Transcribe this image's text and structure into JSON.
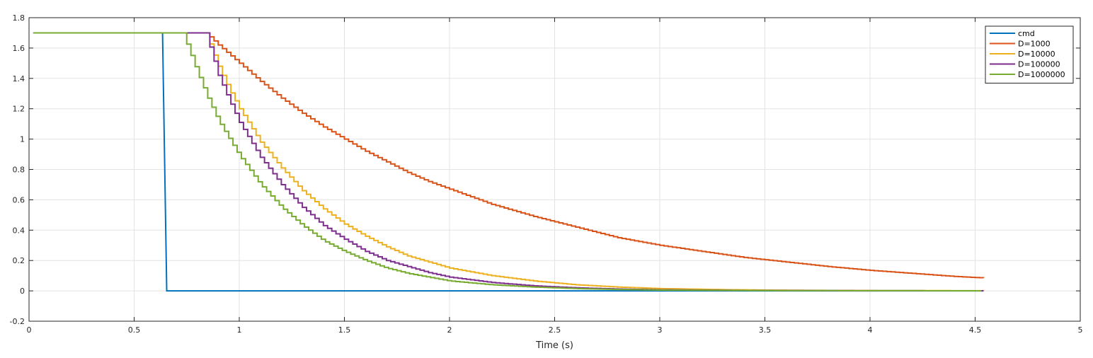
{
  "chart_data": {
    "type": "line",
    "title": "",
    "xlabel": "Time (s)",
    "ylabel": "",
    "xlim": [
      0,
      5
    ],
    "ylim": [
      -0.2,
      1.8
    ],
    "xticks": [
      0,
      0.5,
      1,
      1.5,
      2,
      2.5,
      3,
      3.5,
      4,
      4.5,
      5
    ],
    "xtick_labels": [
      "0",
      "0.5",
      "1",
      "1.5",
      "2",
      "2.5",
      "3",
      "3.5",
      "4",
      "4.5",
      "5"
    ],
    "yticks": [
      -0.2,
      0,
      0.2,
      0.4,
      0.6,
      0.8,
      1,
      1.2,
      1.4,
      1.6,
      1.8
    ],
    "ytick_labels": [
      "-0.2",
      "0",
      "0.2",
      "0.4",
      "0.6",
      "0.8",
      "1",
      "1.2",
      "1.4",
      "1.6",
      "1.8"
    ],
    "grid": true,
    "legend_position": "top-right",
    "series": [
      {
        "name": "cmd",
        "color": "#0072BD",
        "step": false,
        "x": [
          0.02,
          0.635,
          0.655,
          4.54
        ],
        "y": [
          1.7,
          1.7,
          0.0,
          0.0
        ]
      },
      {
        "name": "D=1000",
        "color": "#D95319",
        "step": true,
        "x": [
          0.02,
          0.84,
          0.9,
          1.0,
          1.1,
          1.2,
          1.3,
          1.4,
          1.5,
          1.6,
          1.7,
          1.8,
          1.9,
          2.0,
          2.2,
          2.4,
          2.6,
          2.8,
          3.0,
          3.2,
          3.4,
          3.6,
          3.8,
          4.0,
          4.2,
          4.4,
          4.54
        ],
        "y": [
          1.7,
          1.7,
          1.62,
          1.5,
          1.38,
          1.27,
          1.17,
          1.08,
          1.0,
          0.92,
          0.85,
          0.78,
          0.72,
          0.67,
          0.57,
          0.49,
          0.42,
          0.35,
          0.3,
          0.26,
          0.22,
          0.19,
          0.16,
          0.135,
          0.115,
          0.095,
          0.085
        ]
      },
      {
        "name": "D=10000",
        "color": "#EDB120",
        "step": true,
        "x": [
          0.02,
          0.84,
          0.9,
          0.95,
          1.0,
          1.1,
          1.2,
          1.3,
          1.4,
          1.5,
          1.6,
          1.7,
          1.8,
          1.9,
          2.0,
          2.2,
          2.4,
          2.6,
          2.8,
          3.0,
          3.3,
          3.6,
          4.0,
          4.54
        ],
        "y": [
          1.7,
          1.7,
          1.48,
          1.33,
          1.2,
          0.98,
          0.81,
          0.66,
          0.54,
          0.44,
          0.36,
          0.29,
          0.23,
          0.19,
          0.15,
          0.1,
          0.065,
          0.04,
          0.025,
          0.015,
          0.008,
          0.004,
          0.002,
          0.001
        ]
      },
      {
        "name": "D=100000",
        "color": "#7E2F8E",
        "step": true,
        "x": [
          0.02,
          0.84,
          0.9,
          0.95,
          1.0,
          1.1,
          1.2,
          1.3,
          1.4,
          1.5,
          1.6,
          1.7,
          1.8,
          1.9,
          2.0,
          2.2,
          2.4,
          2.6,
          2.8,
          3.0,
          3.4,
          4.0,
          4.54
        ],
        "y": [
          1.7,
          1.7,
          1.42,
          1.26,
          1.11,
          0.88,
          0.7,
          0.55,
          0.43,
          0.34,
          0.26,
          0.2,
          0.16,
          0.12,
          0.09,
          0.055,
          0.033,
          0.02,
          0.012,
          0.007,
          0.003,
          0.001,
          0.0005
        ]
      },
      {
        "name": "D=1000000",
        "color": "#77AC30",
        "step": true,
        "x": [
          0.02,
          0.73,
          0.8,
          0.85,
          0.9,
          1.0,
          1.1,
          1.2,
          1.3,
          1.4,
          1.5,
          1.6,
          1.7,
          1.8,
          1.9,
          2.0,
          2.2,
          2.4,
          2.6,
          2.8,
          3.0,
          3.5,
          4.0,
          4.54
        ],
        "y": [
          1.7,
          1.7,
          1.44,
          1.27,
          1.12,
          0.89,
          0.7,
          0.55,
          0.43,
          0.33,
          0.26,
          0.2,
          0.15,
          0.115,
          0.09,
          0.065,
          0.04,
          0.025,
          0.015,
          0.009,
          0.005,
          0.002,
          0.001,
          0.0005
        ]
      }
    ]
  }
}
